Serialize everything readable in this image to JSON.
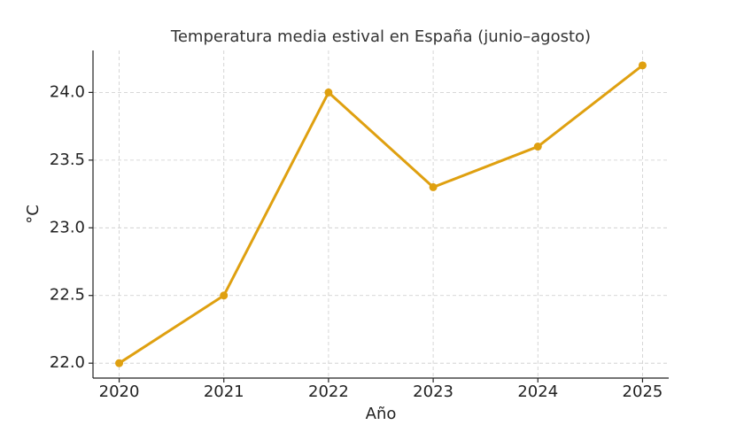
{
  "chart_data": {
    "type": "line",
    "title": "Temperatura media estival en España (junio–agosto)",
    "x_label": "Año",
    "y_label": "°C",
    "x": [
      2020,
      2021,
      2022,
      2023,
      2024,
      2025
    ],
    "series": [
      {
        "color": "#dfa010",
        "values": [
          22.0,
          22.5,
          24.0,
          23.3,
          23.6,
          24.2
        ]
      }
    ],
    "xlim": [
      2019.75,
      2025.25
    ],
    "xticks": [
      2020,
      2021,
      2022,
      2023,
      2024,
      2025
    ],
    "ylim": [
      21.89,
      24.31
    ],
    "yticks": [
      {
        "value": 22.0,
        "label": "22.0"
      },
      22.5,
      {
        "value": 23.0,
        "label": "23.0"
      },
      23.5,
      {
        "value": 24.0,
        "label": "24.0"
      }
    ],
    "grid": true
  }
}
